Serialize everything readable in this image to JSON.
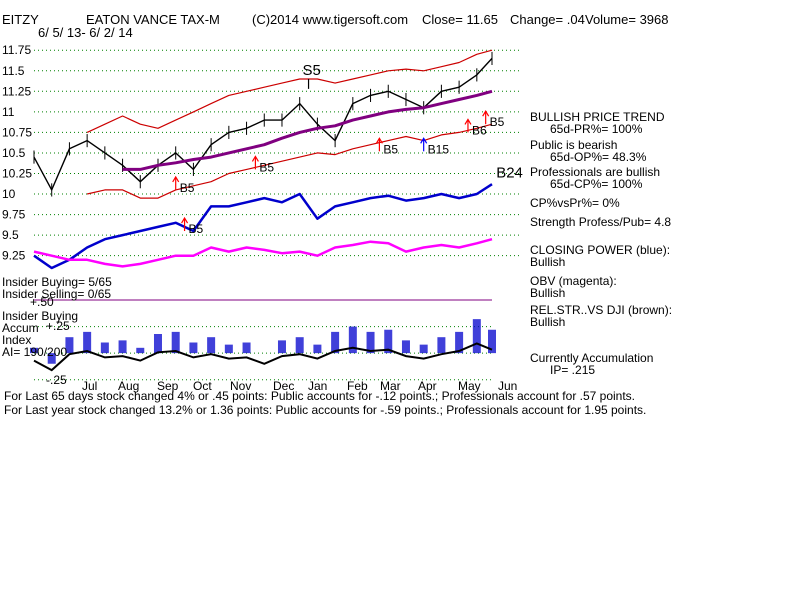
{
  "header": {
    "ticker": "EITZY",
    "fund_name": "EATON VANCE TAX-M",
    "copyright": "(C)2014 www.tigersoft.com",
    "close": "Close=  11.65",
    "change": "Change= .04",
    "volume": "Volume= 3968",
    "date_range": "6/ 5/ 13- 6/ 2/ 14"
  },
  "panel": {
    "bullish_trend": "BULLISH PRICE TREND",
    "pr": "65d-PR%= 100%",
    "public": "Public is bearish",
    "op": "65d-OP%= 48.3%",
    "professionals": "Professionals are bullish",
    "cp": "65d-CP%= 100%",
    "cpvspr": "CP%vsPr%=  0%",
    "strength": "Strength Profess/Pub= 4.8",
    "closing_power": "CLOSING POWER (blue):",
    "closing_power_v": "Bullish",
    "obv": "OBV (magenta):",
    "obv_v": "Bullish",
    "relstr": "REL.STR..VS DJI (brown):",
    "relstr_v": "Bullish",
    "accum": "Currently Accumulation",
    "ip": "IP=  .215"
  },
  "insider": {
    "buying": "Insider Buying= 5/65",
    "selling": "Insider Selling= 0/65",
    "buying_label": "Insider Buying",
    "accum_label": "Accum",
    "index_label": "Index",
    "ai": "AI= 190/200",
    "lvl_top": "+.50",
    "lvl_mid": "+.25",
    "lvl_bot": "-.25"
  },
  "footer": {
    "line1": "For Last 65 days stock changed  4% or  .45 points:  Public accounts for -.12 points.;  Professionals account for  .57 points.",
    "line2": "For Last year stock changed  13.2% or  1.36 points:  Public accounts for -.59 points.;  Professionals account for  1.95 points."
  },
  "colors": {
    "price": "#000000",
    "band": "#cc0000",
    "ma": "#800080",
    "closing_power": "#0000cc",
    "obv": "#ff00ff",
    "accum_bars": "#0000cc",
    "signal_red": "#ff0000",
    "signal_blue": "#0000ff",
    "grid": "#008000"
  },
  "chart_data": {
    "type": "line",
    "ylim": [
      9.1,
      11.85
    ],
    "yticks": [
      11.75,
      11.5,
      11.25,
      11,
      10.75,
      10.5,
      10.25,
      10,
      9.75,
      9.5,
      9.25
    ],
    "ytick_labels": [
      "11.75",
      "11.5",
      "11.25",
      "11",
      "10.75",
      "10.5",
      "10.25",
      "10",
      "9.75",
      "9.5",
      "9.25"
    ],
    "month_labels": [
      "Jul",
      "Aug",
      "Sep",
      "Oct",
      "Nov",
      "Dec",
      "Jan",
      "Feb",
      "Mar",
      "Apr",
      "May",
      "Jun"
    ],
    "x": [
      "2013-06-05",
      "2013-06-19",
      "2013-07-03",
      "2013-07-17",
      "2013-07-31",
      "2013-08-14",
      "2013-08-28",
      "2013-09-11",
      "2013-09-25",
      "2013-10-09",
      "2013-10-23",
      "2013-11-06",
      "2013-11-20",
      "2013-12-04",
      "2013-12-18",
      "2014-01-01",
      "2014-01-15",
      "2014-01-29",
      "2014-02-12",
      "2014-02-26",
      "2014-03-12",
      "2014-03-26",
      "2014-04-09",
      "2014-04-23",
      "2014-05-07",
      "2014-05-21",
      "2014-06-02"
    ],
    "series": [
      {
        "key": "close",
        "values": [
          10.45,
          10.05,
          10.55,
          10.65,
          10.5,
          10.35,
          10.15,
          10.35,
          10.5,
          10.3,
          10.6,
          10.75,
          10.8,
          10.9,
          10.9,
          11.1,
          10.85,
          10.65,
          11.1,
          11.2,
          11.25,
          11.15,
          11.05,
          11.25,
          11.3,
          11.45,
          11.65
        ]
      },
      {
        "key": "ma",
        "values": [
          null,
          null,
          null,
          null,
          null,
          10.3,
          10.3,
          10.35,
          10.38,
          10.42,
          10.45,
          10.5,
          10.55,
          10.6,
          10.68,
          10.75,
          10.8,
          10.83,
          10.9,
          10.95,
          11.0,
          11.03,
          11.05,
          11.1,
          11.15,
          11.2,
          11.25
        ]
      },
      {
        "key": "upper_band",
        "values": [
          null,
          null,
          null,
          10.75,
          10.85,
          10.95,
          10.85,
          10.8,
          10.9,
          11.0,
          11.1,
          11.2,
          11.25,
          11.3,
          11.35,
          11.4,
          11.4,
          11.35,
          11.4,
          11.45,
          11.5,
          11.52,
          11.5,
          11.55,
          11.6,
          11.7,
          11.75
        ]
      },
      {
        "key": "lower_band",
        "values": [
          null,
          null,
          null,
          10.0,
          10.05,
          10.05,
          9.95,
          9.95,
          10.05,
          10.1,
          10.15,
          10.25,
          10.3,
          10.35,
          10.4,
          10.45,
          10.5,
          10.48,
          10.55,
          10.6,
          10.65,
          10.7,
          10.65,
          10.72,
          10.75,
          10.8,
          10.85
        ]
      },
      {
        "key": "closing_power",
        "values": [
          9.25,
          9.1,
          9.2,
          9.35,
          9.45,
          9.5,
          9.55,
          9.6,
          9.65,
          9.55,
          9.85,
          9.85,
          9.9,
          9.95,
          9.9,
          10.0,
          9.7,
          9.85,
          9.9,
          9.95,
          9.98,
          9.92,
          9.95,
          10.0,
          9.95,
          10.0,
          10.12
        ]
      },
      {
        "key": "obv",
        "values": [
          9.3,
          9.25,
          9.2,
          9.2,
          9.15,
          9.12,
          9.15,
          9.2,
          9.25,
          9.25,
          9.35,
          9.3,
          9.35,
          9.32,
          9.28,
          9.3,
          9.25,
          9.35,
          9.38,
          9.42,
          9.4,
          9.3,
          9.35,
          9.38,
          9.35,
          9.4,
          9.45
        ]
      }
    ],
    "accum_index": {
      "ylim": [
        -0.3,
        0.5
      ],
      "values": [
        0.05,
        -0.1,
        0.15,
        0.2,
        0.1,
        0.12,
        0.05,
        0.18,
        0.2,
        0.1,
        0.15,
        0.08,
        0.1,
        0.0,
        0.12,
        0.15,
        0.08,
        0.2,
        0.25,
        0.2,
        0.22,
        0.12,
        0.08,
        0.15,
        0.2,
        0.32,
        0.22
      ]
    },
    "signals": [
      {
        "label": "S5",
        "x": "2014-01-08",
        "y": 11.45,
        "dir": "down",
        "color": "#000000"
      },
      {
        "label": "B5",
        "x": "2013-09-25",
        "y": 10.05,
        "dir": "up",
        "color": "#ff0000"
      },
      {
        "label": "B5",
        "x": "2013-11-27",
        "y": 10.3,
        "dir": "up",
        "color": "#ff0000"
      },
      {
        "label": "B5",
        "x": "2013-10-02",
        "y": 9.55,
        "dir": "up",
        "color": "#ff0000"
      },
      {
        "label": "B5",
        "x": "2014-03-05",
        "y": 10.52,
        "dir": "up",
        "color": "#ff0000"
      },
      {
        "label": "B15",
        "x": "2014-04-09",
        "y": 10.52,
        "dir": "up",
        "color": "#0000ff"
      },
      {
        "label": "B5",
        "x": "2014-05-28",
        "y": 10.85,
        "dir": "up",
        "color": "#ff0000"
      },
      {
        "label": "B6",
        "x": "2014-05-14",
        "y": 10.75,
        "dir": "up",
        "color": "#ff0000"
      },
      {
        "label": "B24",
        "x": "2014-05-30",
        "y": 10.2,
        "dir": "none",
        "color": "#000000"
      }
    ]
  }
}
